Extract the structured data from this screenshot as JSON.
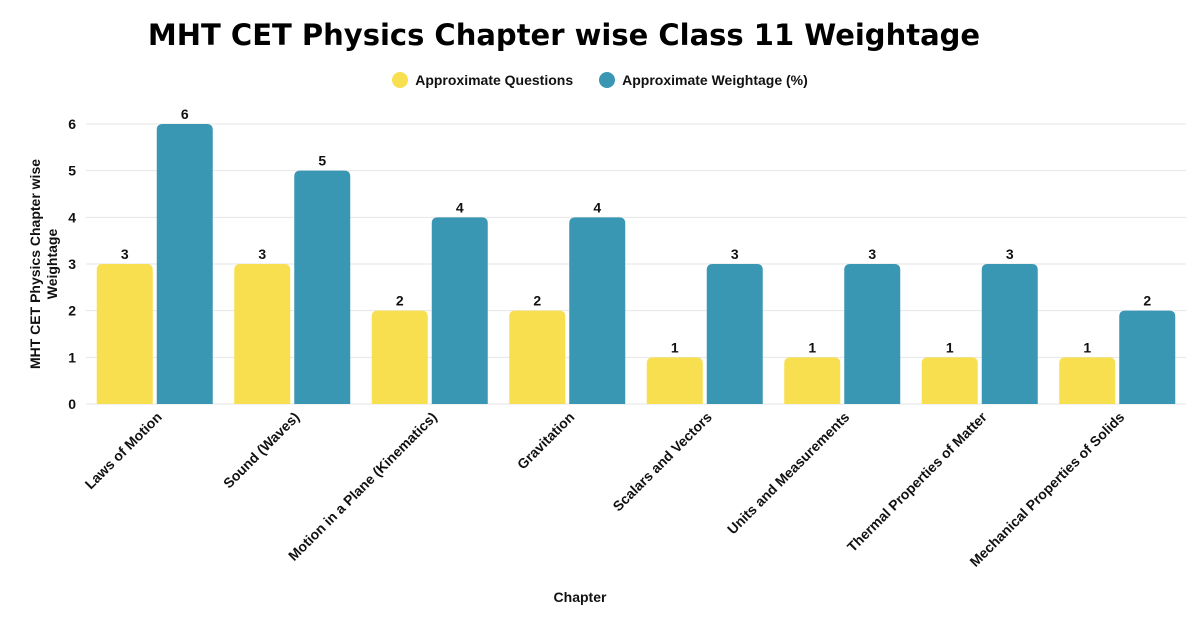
{
  "chart_data": {
    "type": "bar",
    "title": "MHT CET Physics Chapter wise Class 11 Weightage",
    "xlabel": "Chapter",
    "ylabel": "MHT CET Physics Chapter wise Weightage",
    "ylim": [
      0,
      6
    ],
    "yticks": [
      "0",
      "1",
      "2",
      "3",
      "4",
      "5",
      "6"
    ],
    "grid": true,
    "legend_position": "top-center",
    "categories": [
      "Laws of Motion",
      "Sound (Waves)",
      "Motion in a Plane (Kinematics)",
      "Gravitation",
      "Scalars and Vectors",
      "Units and Measurements",
      "Thermal Properties of Matter",
      "Mechanical Properties of Solids"
    ],
    "series": [
      {
        "name": "Approximate Questions",
        "color": "#f8df4f",
        "values": [
          3,
          3,
          2,
          2,
          1,
          1,
          1,
          1
        ]
      },
      {
        "name": "Approximate Weightage (%)",
        "color": "#3a97b4",
        "values": [
          6,
          5,
          4,
          4,
          3,
          3,
          3,
          2
        ]
      }
    ]
  }
}
